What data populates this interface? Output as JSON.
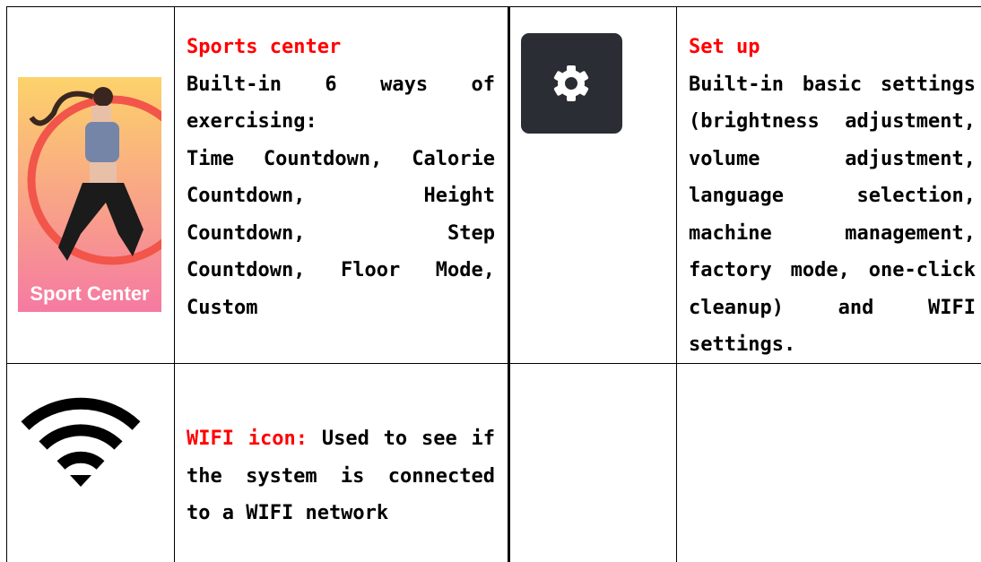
{
  "sections": [
    {
      "image_label": "Sport Center",
      "title": "Sports center",
      "paragraphs": [
        "Built-in 6 ways of exercising:",
        "Time Countdown, Calorie Countdown, Height Countdown, Step Countdown, Floor Mode, Custom"
      ]
    },
    {
      "title": "Set up",
      "paragraphs": [
        "Built-in basic settings (brightness adjustment, volume adjustment, language selection, machine management, factory mode, one-click cleanup) and WIFI settings."
      ]
    },
    {
      "title": "WIFI icon:",
      "paragraphs": [
        "Used to see if the system is connected to a WIFI network"
      ]
    }
  ]
}
